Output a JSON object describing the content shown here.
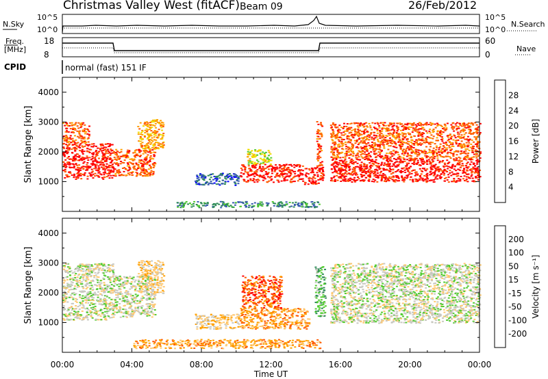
{
  "header": {
    "title": "Christmas Valley West (fitACF)",
    "beam": "Beam 09",
    "date": "26/Feb/2012",
    "cpid_label": "CPID",
    "cpid_value": "normal (fast) 151 IF"
  },
  "status_panels": {
    "nsky_label": "N.Sky",
    "nsky_ticks": [
      "10^5",
      "10^0"
    ],
    "nsearch_label": "N.Search",
    "nsearch_ticks": [
      "10^5",
      "10^0"
    ],
    "freq_label_1": "Freq.",
    "freq_label_2": "[MHz]",
    "freq_ticks": [
      "18",
      "8"
    ],
    "nave_label": "Nave",
    "nave_ticks": [
      "60",
      "0"
    ]
  },
  "colors": {
    "power": [
      "#0000ff",
      "#3a5cb0",
      "#2e8b57",
      "#55cc33",
      "#eedd00",
      "#ffa000",
      "#ff5a00",
      "#ff0000"
    ],
    "velocity": [
      "#ff0000",
      "#ff5a00",
      "#ffa000",
      "#ffc870",
      "#c8c8c0",
      "#55cc33",
      "#2e8b57",
      "#3a5cb0",
      "#0000ff"
    ]
  },
  "chart_data": [
    {
      "type": "heatmap",
      "panel": "power",
      "ylabel": "Slant Range [km]",
      "ylim": [
        0,
        4500
      ],
      "y_ticks": [
        1000,
        2000,
        3000,
        4000
      ],
      "xlim": [
        0,
        24
      ],
      "x_ticks": [
        "00:00",
        "04:00",
        "08:00",
        "12:00",
        "16:00",
        "20:00",
        "00:00"
      ],
      "colorbar_label": "Power [dB]",
      "colorbar_ticks": [
        "4",
        "8",
        "12",
        "16",
        "20",
        "24",
        "28"
      ],
      "regions": [
        {
          "x0": 0.0,
          "x1": 2.9,
          "y0": 1100,
          "y1": 2300,
          "level": 7
        },
        {
          "x0": 0.0,
          "x1": 1.5,
          "y0": 2300,
          "y1": 3000,
          "level": 6
        },
        {
          "x0": 2.9,
          "x1": 5.3,
          "y0": 1200,
          "y1": 2100,
          "level": 6
        },
        {
          "x0": 4.3,
          "x1": 5.8,
          "y0": 2100,
          "y1": 3100,
          "level": 5
        },
        {
          "x0": 7.6,
          "x1": 10.2,
          "y0": 900,
          "y1": 1300,
          "level": 1
        },
        {
          "x0": 10.2,
          "x1": 13.8,
          "y0": 1000,
          "y1": 1600,
          "level": 7
        },
        {
          "x0": 10.6,
          "x1": 12.0,
          "y0": 1600,
          "y1": 2100,
          "level": 4
        },
        {
          "x0": 13.9,
          "x1": 15.0,
          "y0": 900,
          "y1": 1500,
          "level": 7
        },
        {
          "x0": 14.6,
          "x1": 14.9,
          "y0": 1500,
          "y1": 3100,
          "level": 6
        },
        {
          "x0": 15.4,
          "x1": 24.0,
          "y0": 1000,
          "y1": 1800,
          "level": 7
        },
        {
          "x0": 15.4,
          "x1": 24.0,
          "y0": 1800,
          "y1": 3000,
          "level": 6
        },
        {
          "x0": 6.5,
          "x1": 14.8,
          "y0": 150,
          "y1": 350,
          "level": 2
        }
      ]
    },
    {
      "type": "heatmap",
      "panel": "velocity",
      "ylabel": "Slant Range [km]",
      "ylim": [
        0,
        4500
      ],
      "y_ticks": [
        1000,
        2000,
        3000,
        4000
      ],
      "xlim": [
        0,
        24
      ],
      "x_ticks": [
        "00:00",
        "04:00",
        "08:00",
        "12:00",
        "16:00",
        "20:00",
        "00:00"
      ],
      "xlabel": "Time UT",
      "colorbar_label": "Velocity [m s⁻¹]",
      "colorbar_ticks": [
        "-200",
        "-100",
        "-50",
        "-15",
        "15",
        "50",
        "100",
        "200"
      ],
      "regions": [
        {
          "x0": 0.0,
          "x1": 2.9,
          "y0": 1100,
          "y1": 3000,
          "level": 4
        },
        {
          "x0": 2.9,
          "x1": 5.3,
          "y0": 1200,
          "y1": 2600,
          "level": 4
        },
        {
          "x0": 4.3,
          "x1": 5.8,
          "y0": 2000,
          "y1": 3100,
          "level": 3
        },
        {
          "x0": 7.6,
          "x1": 10.2,
          "y0": 800,
          "y1": 1300,
          "level": 3
        },
        {
          "x0": 10.2,
          "x1": 14.2,
          "y0": 800,
          "y1": 1500,
          "level": 2
        },
        {
          "x0": 10.3,
          "x1": 12.6,
          "y0": 1500,
          "y1": 2600,
          "level": 1
        },
        {
          "x0": 14.5,
          "x1": 15.1,
          "y0": 1200,
          "y1": 2900,
          "level": 5
        },
        {
          "x0": 15.4,
          "x1": 24.0,
          "y0": 1000,
          "y1": 3000,
          "level": 4
        },
        {
          "x0": 4.0,
          "x1": 14.8,
          "y0": 150,
          "y1": 450,
          "level": 2
        }
      ]
    }
  ]
}
